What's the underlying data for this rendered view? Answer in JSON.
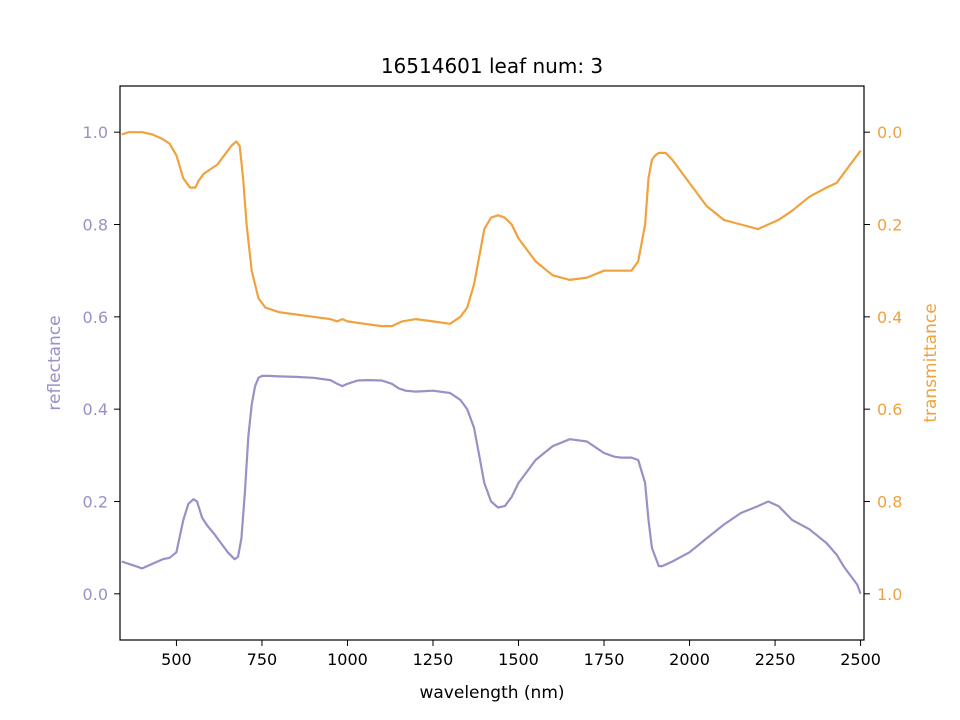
{
  "colors": {
    "reflectance": "#9990c6",
    "transmittance": "#f0a23e",
    "axis": "#000000"
  },
  "chart_data": {
    "type": "line",
    "title": "16514601 leaf num: 3",
    "xlabel": "wavelength (nm)",
    "ylabel_left": "reflectance",
    "ylabel_right": "transmittance",
    "xlim": [
      335,
      2510
    ],
    "ylim_left": [
      -0.1,
      1.1
    ],
    "ylim_right_inverted": [
      1.1,
      -0.1
    ],
    "x_ticks": [
      500,
      750,
      1000,
      1250,
      1500,
      1750,
      2000,
      2250,
      2500
    ],
    "x_tick_labels": [
      "500",
      "750",
      "1000",
      "1250",
      "1500",
      "1750",
      "2000",
      "2250",
      "2500"
    ],
    "y_left_ticks": [
      0.0,
      0.2,
      0.4,
      0.6,
      0.8,
      1.0
    ],
    "y_left_tick_labels": [
      "0.0",
      "0.2",
      "0.4",
      "0.6",
      "0.8",
      "1.0"
    ],
    "y_right_ticks": [
      0.0,
      0.2,
      0.4,
      0.6,
      0.8,
      1.0
    ],
    "y_right_tick_labels": [
      "0.0",
      "0.2",
      "0.4",
      "0.6",
      "0.8",
      "1.0"
    ],
    "series": [
      {
        "axis": "left",
        "x": [
          340,
          360,
          380,
          400,
          430,
          460,
          480,
          500,
          520,
          535,
          550,
          560,
          575,
          590,
          610,
          630,
          650,
          670,
          680,
          690,
          700,
          710,
          720,
          730,
          740,
          750,
          770,
          800,
          850,
          900,
          950,
          970,
          985,
          1000,
          1030,
          1060,
          1100,
          1130,
          1150,
          1170,
          1200,
          1250,
          1300,
          1330,
          1350,
          1370,
          1385,
          1400,
          1420,
          1440,
          1460,
          1480,
          1500,
          1550,
          1600,
          1650,
          1700,
          1730,
          1750,
          1780,
          1800,
          1830,
          1850,
          1870,
          1880,
          1890,
          1900,
          1910,
          1920,
          1950,
          2000,
          2050,
          2100,
          2150,
          2200,
          2230,
          2260,
          2300,
          2350,
          2400,
          2430,
          2450,
          2470,
          2490,
          2500
        ],
        "y": [
          0.07,
          0.065,
          0.06,
          0.055,
          0.065,
          0.075,
          0.078,
          0.09,
          0.16,
          0.195,
          0.205,
          0.2,
          0.165,
          0.148,
          0.13,
          0.11,
          0.09,
          0.075,
          0.08,
          0.12,
          0.22,
          0.34,
          0.41,
          0.45,
          0.468,
          0.472,
          0.472,
          0.471,
          0.47,
          0.468,
          0.463,
          0.455,
          0.45,
          0.455,
          0.462,
          0.463,
          0.462,
          0.455,
          0.445,
          0.44,
          0.438,
          0.44,
          0.435,
          0.42,
          0.4,
          0.36,
          0.3,
          0.24,
          0.2,
          0.187,
          0.19,
          0.21,
          0.24,
          0.29,
          0.32,
          0.335,
          0.33,
          0.315,
          0.305,
          0.297,
          0.295,
          0.295,
          0.29,
          0.24,
          0.16,
          0.1,
          0.08,
          0.06,
          0.06,
          0.07,
          0.09,
          0.12,
          0.15,
          0.175,
          0.19,
          0.2,
          0.19,
          0.16,
          0.14,
          0.11,
          0.085,
          0.06,
          0.04,
          0.02,
          0.0
        ]
      },
      {
        "axis": "right",
        "x": [
          340,
          360,
          380,
          400,
          430,
          460,
          480,
          500,
          520,
          540,
          555,
          565,
          580,
          600,
          620,
          640,
          660,
          675,
          685,
          695,
          705,
          720,
          740,
          760,
          800,
          850,
          900,
          950,
          970,
          985,
          1000,
          1050,
          1100,
          1130,
          1160,
          1200,
          1250,
          1300,
          1330,
          1350,
          1370,
          1385,
          1400,
          1420,
          1440,
          1460,
          1480,
          1500,
          1550,
          1600,
          1650,
          1700,
          1750,
          1780,
          1800,
          1830,
          1850,
          1870,
          1880,
          1890,
          1900,
          1910,
          1930,
          1950,
          2000,
          2050,
          2100,
          2150,
          2200,
          2230,
          2260,
          2300,
          2350,
          2400,
          2430,
          2450,
          2470,
          2490,
          2500
        ],
        "y": [
          0.005,
          0.0,
          0.0,
          0.0,
          0.005,
          0.015,
          0.025,
          0.05,
          0.1,
          0.12,
          0.12,
          0.105,
          0.09,
          0.08,
          0.07,
          0.05,
          0.03,
          0.02,
          0.03,
          0.1,
          0.2,
          0.3,
          0.36,
          0.38,
          0.39,
          0.395,
          0.4,
          0.405,
          0.41,
          0.405,
          0.41,
          0.415,
          0.42,
          0.42,
          0.41,
          0.405,
          0.41,
          0.415,
          0.4,
          0.38,
          0.33,
          0.27,
          0.21,
          0.185,
          0.18,
          0.185,
          0.2,
          0.23,
          0.28,
          0.31,
          0.32,
          0.315,
          0.3,
          0.3,
          0.3,
          0.3,
          0.28,
          0.2,
          0.1,
          0.06,
          0.05,
          0.045,
          0.045,
          0.06,
          0.11,
          0.16,
          0.19,
          0.2,
          0.21,
          0.2,
          0.19,
          0.17,
          0.14,
          0.12,
          0.11,
          0.09,
          0.07,
          0.05,
          0.04
        ]
      }
    ]
  }
}
